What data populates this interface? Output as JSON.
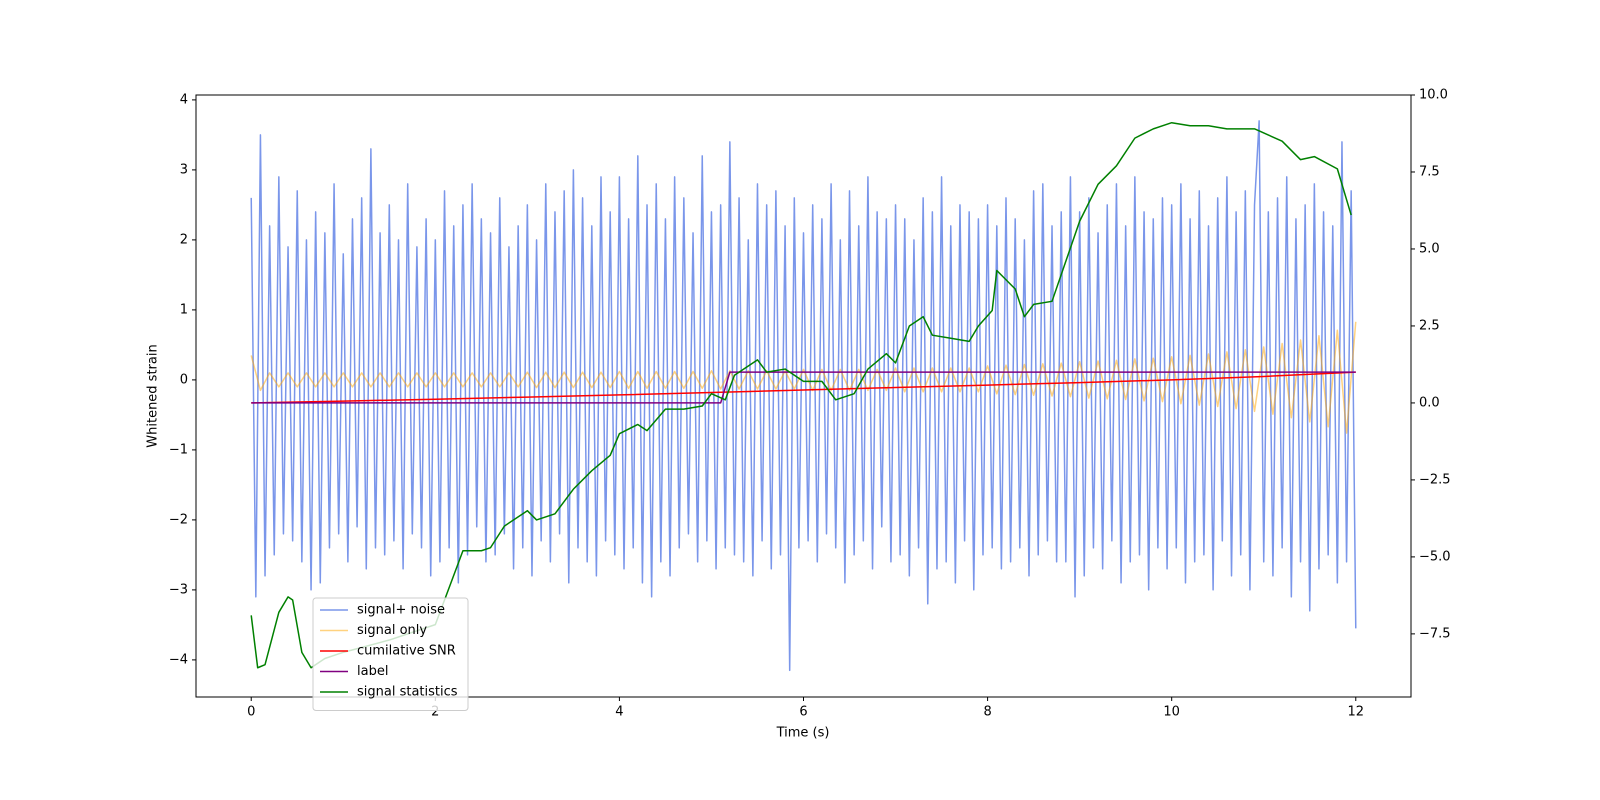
{
  "chart_data": {
    "type": "line",
    "xlabel": "Time (s)",
    "ylabel": "Whitened strain",
    "xlim": [
      -0.6,
      12.6
    ],
    "ylim": [
      -4.53,
      4.07
    ],
    "y2lim": [
      -9.55,
      10.0
    ],
    "xticks": [
      0,
      2,
      4,
      6,
      8,
      10,
      12
    ],
    "yticks": [
      {
        "value": -4,
        "label": "−4"
      },
      {
        "value": -3,
        "label": "−3"
      },
      {
        "value": -2,
        "label": "−2"
      },
      {
        "value": -1,
        "label": "−1"
      },
      0,
      1,
      2,
      3,
      4
    ],
    "y2ticks": [
      {
        "value": -7.5,
        "label": "−7.5"
      },
      {
        "value": -5,
        "label": "−5.0"
      },
      {
        "value": -2.5,
        "label": "−2.5"
      },
      {
        "value": 0,
        "label": "0.0"
      },
      {
        "value": 2.5,
        "label": "2.5"
      },
      {
        "value": 5,
        "label": "5.0"
      },
      {
        "value": 7.5,
        "label": "7.5"
      },
      {
        "value": 10,
        "label": "10.0"
      }
    ],
    "grid": false,
    "x": [
      0,
      0.05,
      0.1,
      0.15,
      0.2,
      0.25,
      0.3,
      0.35,
      0.4,
      0.45,
      0.5,
      0.55,
      0.6,
      0.65,
      0.7,
      0.75,
      0.8,
      0.85,
      0.9,
      0.95,
      1,
      1.05,
      1.1,
      1.15,
      1.2,
      1.25,
      1.3,
      1.35,
      1.4,
      1.45,
      1.5,
      1.55,
      1.6,
      1.65,
      1.7,
      1.75,
      1.8,
      1.85,
      1.9,
      1.95,
      2,
      2.05,
      2.1,
      2.15,
      2.2,
      2.25,
      2.3,
      2.35,
      2.4,
      2.45,
      2.5,
      2.55,
      2.6,
      2.65,
      2.7,
      2.75,
      2.8,
      2.85,
      2.9,
      2.95,
      3,
      3.05,
      3.1,
      3.15,
      3.2,
      3.25,
      3.3,
      3.35,
      3.4,
      3.45,
      3.5,
      3.55,
      3.6,
      3.65,
      3.7,
      3.75,
      3.8,
      3.85,
      3.9,
      3.95,
      4,
      4.05,
      4.1,
      4.15,
      4.2,
      4.25,
      4.3,
      4.35,
      4.4,
      4.45,
      4.5,
      4.55,
      4.6,
      4.65,
      4.7,
      4.75,
      4.8,
      4.85,
      4.9,
      4.95,
      5,
      5.05,
      5.1,
      5.15,
      5.2,
      5.25,
      5.3,
      5.35,
      5.4,
      5.45,
      5.5,
      5.55,
      5.6,
      5.65,
      5.7,
      5.75,
      5.8,
      5.85,
      5.9,
      5.95,
      6,
      6.05,
      6.1,
      6.15,
      6.2,
      6.25,
      6.3,
      6.35,
      6.4,
      6.45,
      6.5,
      6.55,
      6.6,
      6.65,
      6.7,
      6.75,
      6.8,
      6.85,
      6.9,
      6.95,
      7,
      7.05,
      7.1,
      7.15,
      7.2,
      7.25,
      7.3,
      7.35,
      7.4,
      7.45,
      7.5,
      7.55,
      7.6,
      7.65,
      7.7,
      7.75,
      7.8,
      7.85,
      7.9,
      7.95,
      8,
      8.05,
      8.1,
      8.15,
      8.2,
      8.25,
      8.3,
      8.35,
      8.4,
      8.45,
      8.5,
      8.55,
      8.6,
      8.65,
      8.7,
      8.75,
      8.8,
      8.85,
      8.9,
      8.95,
      9,
      9.05,
      9.1,
      9.15,
      9.2,
      9.25,
      9.3,
      9.35,
      9.4,
      9.45,
      9.5,
      9.55,
      9.6,
      9.65,
      9.7,
      9.75,
      9.8,
      9.85,
      9.9,
      9.95,
      10,
      10.05,
      10.1,
      10.15,
      10.2,
      10.25,
      10.3,
      10.35,
      10.4,
      10.45,
      10.5,
      10.55,
      10.6,
      10.65,
      10.7,
      10.75,
      10.8,
      10.85,
      10.9,
      10.95,
      11,
      11.05,
      11.1,
      11.15,
      11.2,
      11.25,
      11.3,
      11.35,
      11.4,
      11.45,
      11.5,
      11.55,
      11.6,
      11.65,
      11.7,
      11.75,
      11.8,
      11.85,
      11.9,
      11.95,
      12
    ],
    "series": [
      {
        "name": "signal+ noise",
        "color": "#4169e1",
        "alpha": 0.7,
        "values": [
          2.6,
          -3.1,
          3.5,
          -2.8,
          2.2,
          -2.5,
          2.9,
          -2.2,
          1.9,
          -2.3,
          2.7,
          -2.6,
          2.0,
          -3.0,
          2.4,
          -2.9,
          2.1,
          -2.4,
          2.8,
          -2.2,
          1.8,
          -2.6,
          2.3,
          -2.1,
          2.6,
          -2.7,
          3.3,
          -2.4,
          2.1,
          -2.5,
          2.5,
          -2.3,
          2.0,
          -2.7,
          2.8,
          -2.2,
          1.9,
          -2.4,
          2.3,
          -2.8,
          2.0,
          -2.6,
          2.7,
          -2.4,
          2.2,
          -2.9,
          2.5,
          -2.5,
          2.8,
          -2.1,
          2.3,
          -2.6,
          2.1,
          -2.5,
          2.6,
          -2.2,
          1.9,
          -2.7,
          2.2,
          -2.4,
          2.5,
          -2.8,
          2.0,
          -2.3,
          2.8,
          -2.6,
          2.4,
          -2.2,
          2.7,
          -2.9,
          3.0,
          -2.4,
          2.6,
          -2.6,
          2.2,
          -2.8,
          2.9,
          -2.3,
          2.4,
          -2.5,
          2.9,
          -2.7,
          2.3,
          -2.4,
          3.2,
          -2.9,
          2.5,
          -3.1,
          2.8,
          -2.6,
          2.3,
          -2.8,
          2.9,
          -2.4,
          2.6,
          -2.2,
          2.1,
          -2.6,
          3.2,
          -2.3,
          2.4,
          -2.7,
          2.5,
          -2.4,
          3.4,
          -2.5,
          2.6,
          -2.6,
          2.0,
          -2.8,
          2.8,
          -2.3,
          2.5,
          -2.7,
          2.7,
          -2.5,
          2.2,
          -4.15,
          2.6,
          -2.4,
          2.1,
          -2.3,
          2.5,
          -2.6,
          2.3,
          -2.2,
          2.8,
          -2.4,
          2.0,
          -2.9,
          2.7,
          -2.5,
          2.2,
          -2.3,
          2.9,
          -2.7,
          2.4,
          -2.1,
          2.3,
          -2.6,
          2.5,
          -2.5,
          2.3,
          -2.8,
          2.0,
          -2.4,
          2.6,
          -3.2,
          2.4,
          -2.7,
          2.9,
          -2.6,
          2.2,
          -2.9,
          2.5,
          -2.3,
          2.4,
          -3.0,
          2.3,
          -2.5,
          2.5,
          -2.4,
          2.2,
          -2.7,
          2.6,
          -2.6,
          2.3,
          -2.4,
          2.0,
          -2.8,
          2.7,
          -2.5,
          2.8,
          -2.3,
          2.2,
          -2.6,
          2.4,
          -2.6,
          2.9,
          -3.1,
          2.4,
          -2.8,
          2.6,
          -2.4,
          2.1,
          -2.7,
          2.5,
          -2.3,
          2.8,
          -2.9,
          2.2,
          -2.6,
          2.9,
          -2.5,
          2.4,
          -3.0,
          2.3,
          -2.4,
          2.6,
          -2.7,
          2.5,
          -2.4,
          2.8,
          -2.9,
          2.3,
          -2.6,
          2.7,
          -2.5,
          2.2,
          -3.0,
          2.6,
          -2.3,
          2.9,
          -2.8,
          2.4,
          -2.5,
          2.7,
          -3.0,
          2.5,
          3.7,
          -2.6,
          2.4,
          -2.8,
          2.6,
          -2.4,
          2.9,
          -3.1,
          2.3,
          -2.6,
          2.5,
          -3.3,
          2.8,
          -2.7,
          2.4,
          -2.5,
          2.2,
          -2.9,
          3.4,
          -2.6,
          2.7,
          -3.55
        ]
      },
      {
        "name": "signal only",
        "color": "#ffa500",
        "alpha": 0.5,
        "x": [
          0,
          0.1,
          0.2,
          0.3,
          0.4,
          0.5,
          0.6,
          0.7,
          0.8,
          0.9,
          1,
          1.1,
          1.2,
          1.3,
          1.4,
          1.5,
          1.6,
          1.7,
          1.8,
          1.9,
          2,
          2.1,
          2.2,
          2.3,
          2.4,
          2.5,
          2.6,
          2.7,
          2.8,
          2.9,
          3,
          3.1,
          3.2,
          3.3,
          3.4,
          3.5,
          3.6,
          3.7,
          3.8,
          3.9,
          4,
          4.1,
          4.2,
          4.3,
          4.4,
          4.5,
          4.6,
          4.7,
          4.8,
          4.9,
          5,
          5.1,
          5.2,
          5.3,
          5.4,
          5.5,
          5.6,
          5.7,
          5.8,
          5.9,
          6,
          6.1,
          6.2,
          6.3,
          6.4,
          6.5,
          6.6,
          6.7,
          6.8,
          6.9,
          7,
          7.1,
          7.2,
          7.3,
          7.4,
          7.5,
          7.6,
          7.7,
          7.8,
          7.9,
          8,
          8.1,
          8.2,
          8.3,
          8.4,
          8.5,
          8.6,
          8.7,
          8.8,
          8.9,
          9,
          9.1,
          9.2,
          9.3,
          9.4,
          9.5,
          9.6,
          9.7,
          9.8,
          9.9,
          10,
          10.1,
          10.2,
          10.3,
          10.4,
          10.5,
          10.6,
          10.7,
          10.8,
          10.9,
          11,
          11.1,
          11.2,
          11.3,
          11.4,
          11.5,
          11.6,
          11.7,
          11.8,
          11.9,
          12
        ],
        "values": [
          0.35,
          -0.15,
          0.1,
          -0.1,
          0.1,
          -0.1,
          0.1,
          -0.1,
          0.1,
          -0.1,
          0.1,
          -0.1,
          0.1,
          -0.1,
          0.1,
          -0.1,
          0.1,
          -0.1,
          0.1,
          -0.1,
          0.1,
          -0.1,
          0.1,
          -0.1,
          0.1,
          -0.1,
          0.1,
          -0.1,
          0.1,
          -0.1,
          0.11,
          -0.11,
          0.11,
          -0.11,
          0.11,
          -0.11,
          0.11,
          -0.11,
          0.11,
          -0.11,
          0.12,
          -0.12,
          0.12,
          -0.12,
          0.12,
          -0.12,
          0.12,
          -0.12,
          0.12,
          -0.12,
          0.13,
          -0.13,
          0.13,
          -0.13,
          0.13,
          -0.13,
          0.13,
          -0.13,
          0.13,
          -0.13,
          0.15,
          -0.15,
          0.15,
          -0.15,
          0.15,
          -0.15,
          0.15,
          -0.15,
          0.15,
          -0.15,
          0.17,
          -0.17,
          0.17,
          -0.17,
          0.17,
          -0.17,
          0.17,
          -0.17,
          0.17,
          -0.17,
          0.2,
          -0.2,
          0.21,
          -0.21,
          0.22,
          -0.22,
          0.23,
          -0.23,
          0.24,
          -0.24,
          0.26,
          -0.26,
          0.27,
          -0.27,
          0.28,
          -0.28,
          0.3,
          -0.3,
          0.31,
          -0.31,
          0.33,
          -0.34,
          0.35,
          -0.36,
          0.37,
          -0.38,
          0.4,
          -0.41,
          0.43,
          -0.45,
          0.47,
          -0.49,
          0.52,
          -0.54,
          0.57,
          -0.6,
          0.63,
          -0.67,
          0.71,
          -0.76,
          0.83
        ]
      },
      {
        "name": "cumilative SNR",
        "color": "#ff0000",
        "axis": "y2",
        "x": [
          0,
          1,
          2,
          3,
          4,
          5,
          6,
          7,
          8,
          9,
          10,
          11,
          12
        ],
        "values": [
          0,
          0.06,
          0.12,
          0.19,
          0.26,
          0.34,
          0.42,
          0.5,
          0.58,
          0.66,
          0.75,
          0.86,
          1.0
        ]
      },
      {
        "name": "label",
        "color": "#800080",
        "axis": "y2",
        "x": [
          0,
          5.1,
          5.2,
          12
        ],
        "values": [
          0,
          0,
          1,
          1
        ]
      },
      {
        "name": "signal statistics",
        "color": "#008000",
        "axis": "y2",
        "x": [
          0,
          0.07,
          0.15,
          0.3,
          0.4,
          0.45,
          0.55,
          0.65,
          0.8,
          1.0,
          1.5,
          2.0,
          2.3,
          2.5,
          2.6,
          2.75,
          3.0,
          3.1,
          3.3,
          3.5,
          3.7,
          3.9,
          4.0,
          4.2,
          4.3,
          4.5,
          4.7,
          4.9,
          5.0,
          5.15,
          5.25,
          5.5,
          5.6,
          5.8,
          6.0,
          6.2,
          6.35,
          6.55,
          6.7,
          6.9,
          7.0,
          7.15,
          7.3,
          7.4,
          7.6,
          7.8,
          7.9,
          8.05,
          8.1,
          8.3,
          8.4,
          8.5,
          8.7,
          8.85,
          9.0,
          9.2,
          9.4,
          9.6,
          9.8,
          10.0,
          10.2,
          10.4,
          10.6,
          10.9,
          11.2,
          11.4,
          11.55,
          11.8,
          11.95
        ],
        "values": [
          -6.9,
          -8.6,
          -8.5,
          -6.8,
          -6.3,
          -6.4,
          -8.1,
          -8.6,
          -8.3,
          -8.1,
          -7.7,
          -7.2,
          -4.8,
          -4.8,
          -4.7,
          -4.0,
          -3.5,
          -3.8,
          -3.6,
          -2.8,
          -2.2,
          -1.7,
          -1.0,
          -0.7,
          -0.9,
          -0.2,
          -0.2,
          -0.1,
          0.3,
          0.1,
          0.9,
          1.4,
          1.0,
          1.1,
          0.7,
          0.7,
          0.1,
          0.3,
          1.1,
          1.6,
          1.3,
          2.5,
          2.8,
          2.2,
          2.1,
          2.0,
          2.5,
          3.0,
          4.3,
          3.7,
          2.8,
          3.2,
          3.3,
          4.6,
          5.9,
          7.1,
          7.7,
          8.6,
          8.9,
          9.1,
          9.0,
          9.0,
          8.9,
          8.9,
          8.5,
          7.9,
          8.0,
          7.6,
          6.1
        ]
      }
    ]
  }
}
